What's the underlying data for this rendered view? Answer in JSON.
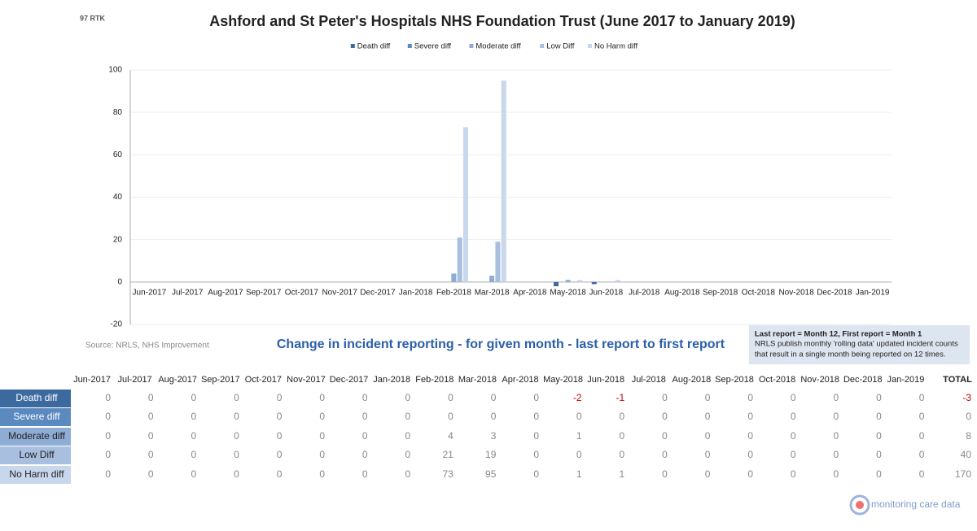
{
  "header": {
    "code": "97 RTK"
  },
  "chart_data": {
    "type": "bar",
    "title": "Ashford and St Peter's Hospitals NHS Foundation Trust (June 2017 to January 2019)",
    "categories": [
      "Jun-2017",
      "Jul-2017",
      "Aug-2017",
      "Sep-2017",
      "Oct-2017",
      "Nov-2017",
      "Dec-2017",
      "Jan-2018",
      "Feb-2018",
      "Mar-2018",
      "Apr-2018",
      "May-2018",
      "Jun-2018",
      "Jul-2018",
      "Aug-2018",
      "Sep-2018",
      "Oct-2018",
      "Nov-2018",
      "Dec-2018",
      "Jan-2019"
    ],
    "series": [
      {
        "name": "Death diff",
        "color": "#3d6a9e",
        "values": [
          0,
          0,
          0,
          0,
          0,
          0,
          0,
          0,
          0,
          0,
          0,
          -2,
          -1,
          0,
          0,
          0,
          0,
          0,
          0,
          0
        ]
      },
      {
        "name": "Severe diff",
        "color": "#5b8ac0",
        "values": [
          0,
          0,
          0,
          0,
          0,
          0,
          0,
          0,
          0,
          0,
          0,
          0,
          0,
          0,
          0,
          0,
          0,
          0,
          0,
          0
        ]
      },
      {
        "name": "Moderate diff",
        "color": "#8eacd4",
        "values": [
          0,
          0,
          0,
          0,
          0,
          0,
          0,
          0,
          4,
          3,
          0,
          1,
          0,
          0,
          0,
          0,
          0,
          0,
          0,
          0
        ]
      },
      {
        "name": "Low Diff",
        "color": "#a9bfe0",
        "values": [
          0,
          0,
          0,
          0,
          0,
          0,
          0,
          0,
          21,
          19,
          0,
          0,
          0,
          0,
          0,
          0,
          0,
          0,
          0,
          0
        ]
      },
      {
        "name": "No Harm diff",
        "color": "#c9d7ec",
        "values": [
          0,
          0,
          0,
          0,
          0,
          0,
          0,
          0,
          73,
          95,
          0,
          1,
          1,
          0,
          0,
          0,
          0,
          0,
          0,
          0
        ]
      }
    ],
    "ylim": [
      -20,
      100
    ],
    "yticks": [
      -20,
      0,
      20,
      40,
      60,
      80,
      100
    ],
    "grid": true,
    "legend": "top",
    "source": "Source: NRLS, NHS Improvement"
  },
  "table": {
    "title": "Change in incident reporting - for given month - last report to first report",
    "total_header": "TOTAL",
    "totals": [
      -3,
      0,
      8,
      40,
      170
    ]
  },
  "note": {
    "title": "Last report = Month 12, First report = Month 1",
    "lines": [
      "NRLS publish monthly 'rolling data' updated incident counts",
      "that result in a single month being reported on 12 times."
    ]
  },
  "footer": {
    "brand": "monitoring care data"
  }
}
